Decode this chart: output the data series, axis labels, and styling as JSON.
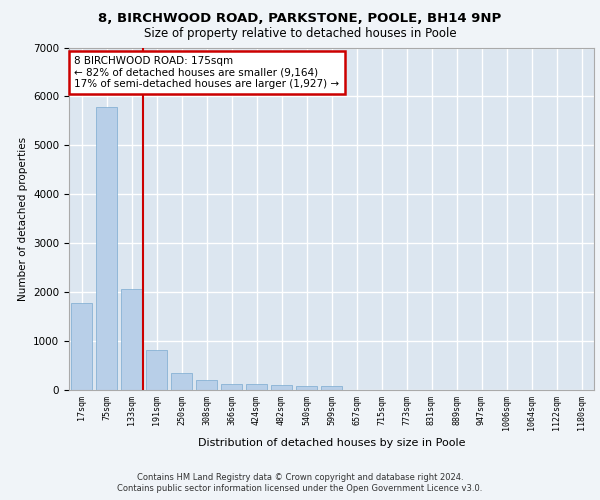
{
  "title_line1": "8, BIRCHWOOD ROAD, PARKSTONE, POOLE, BH14 9NP",
  "title_line2": "Size of property relative to detached houses in Poole",
  "xlabel": "Distribution of detached houses by size in Poole",
  "ylabel": "Number of detached properties",
  "categories": [
    "17sqm",
    "75sqm",
    "133sqm",
    "191sqm",
    "250sqm",
    "308sqm",
    "366sqm",
    "424sqm",
    "482sqm",
    "540sqm",
    "599sqm",
    "657sqm",
    "715sqm",
    "773sqm",
    "831sqm",
    "889sqm",
    "947sqm",
    "1006sqm",
    "1064sqm",
    "1122sqm",
    "1180sqm"
  ],
  "values": [
    1780,
    5780,
    2060,
    820,
    340,
    200,
    125,
    115,
    100,
    80,
    75,
    0,
    0,
    0,
    0,
    0,
    0,
    0,
    0,
    0,
    0
  ],
  "bar_color": "#b8cfe8",
  "bar_edge_color": "#7aaad0",
  "highlight_bar_index": 2,
  "highlight_line_color": "#cc0000",
  "annotation_text": "8 BIRCHWOOD ROAD: 175sqm\n← 82% of detached houses are smaller (9,164)\n17% of semi-detached houses are larger (1,927) →",
  "annotation_box_color": "#ffffff",
  "annotation_box_edge": "#cc0000",
  "ylim": [
    0,
    7000
  ],
  "yticks": [
    0,
    1000,
    2000,
    3000,
    4000,
    5000,
    6000,
    7000
  ],
  "background_color": "#dce6f0",
  "grid_color": "#ffffff",
  "fig_bg_color": "#f0f4f8",
  "footer_line1": "Contains HM Land Registry data © Crown copyright and database right 2024.",
  "footer_line2": "Contains public sector information licensed under the Open Government Licence v3.0."
}
